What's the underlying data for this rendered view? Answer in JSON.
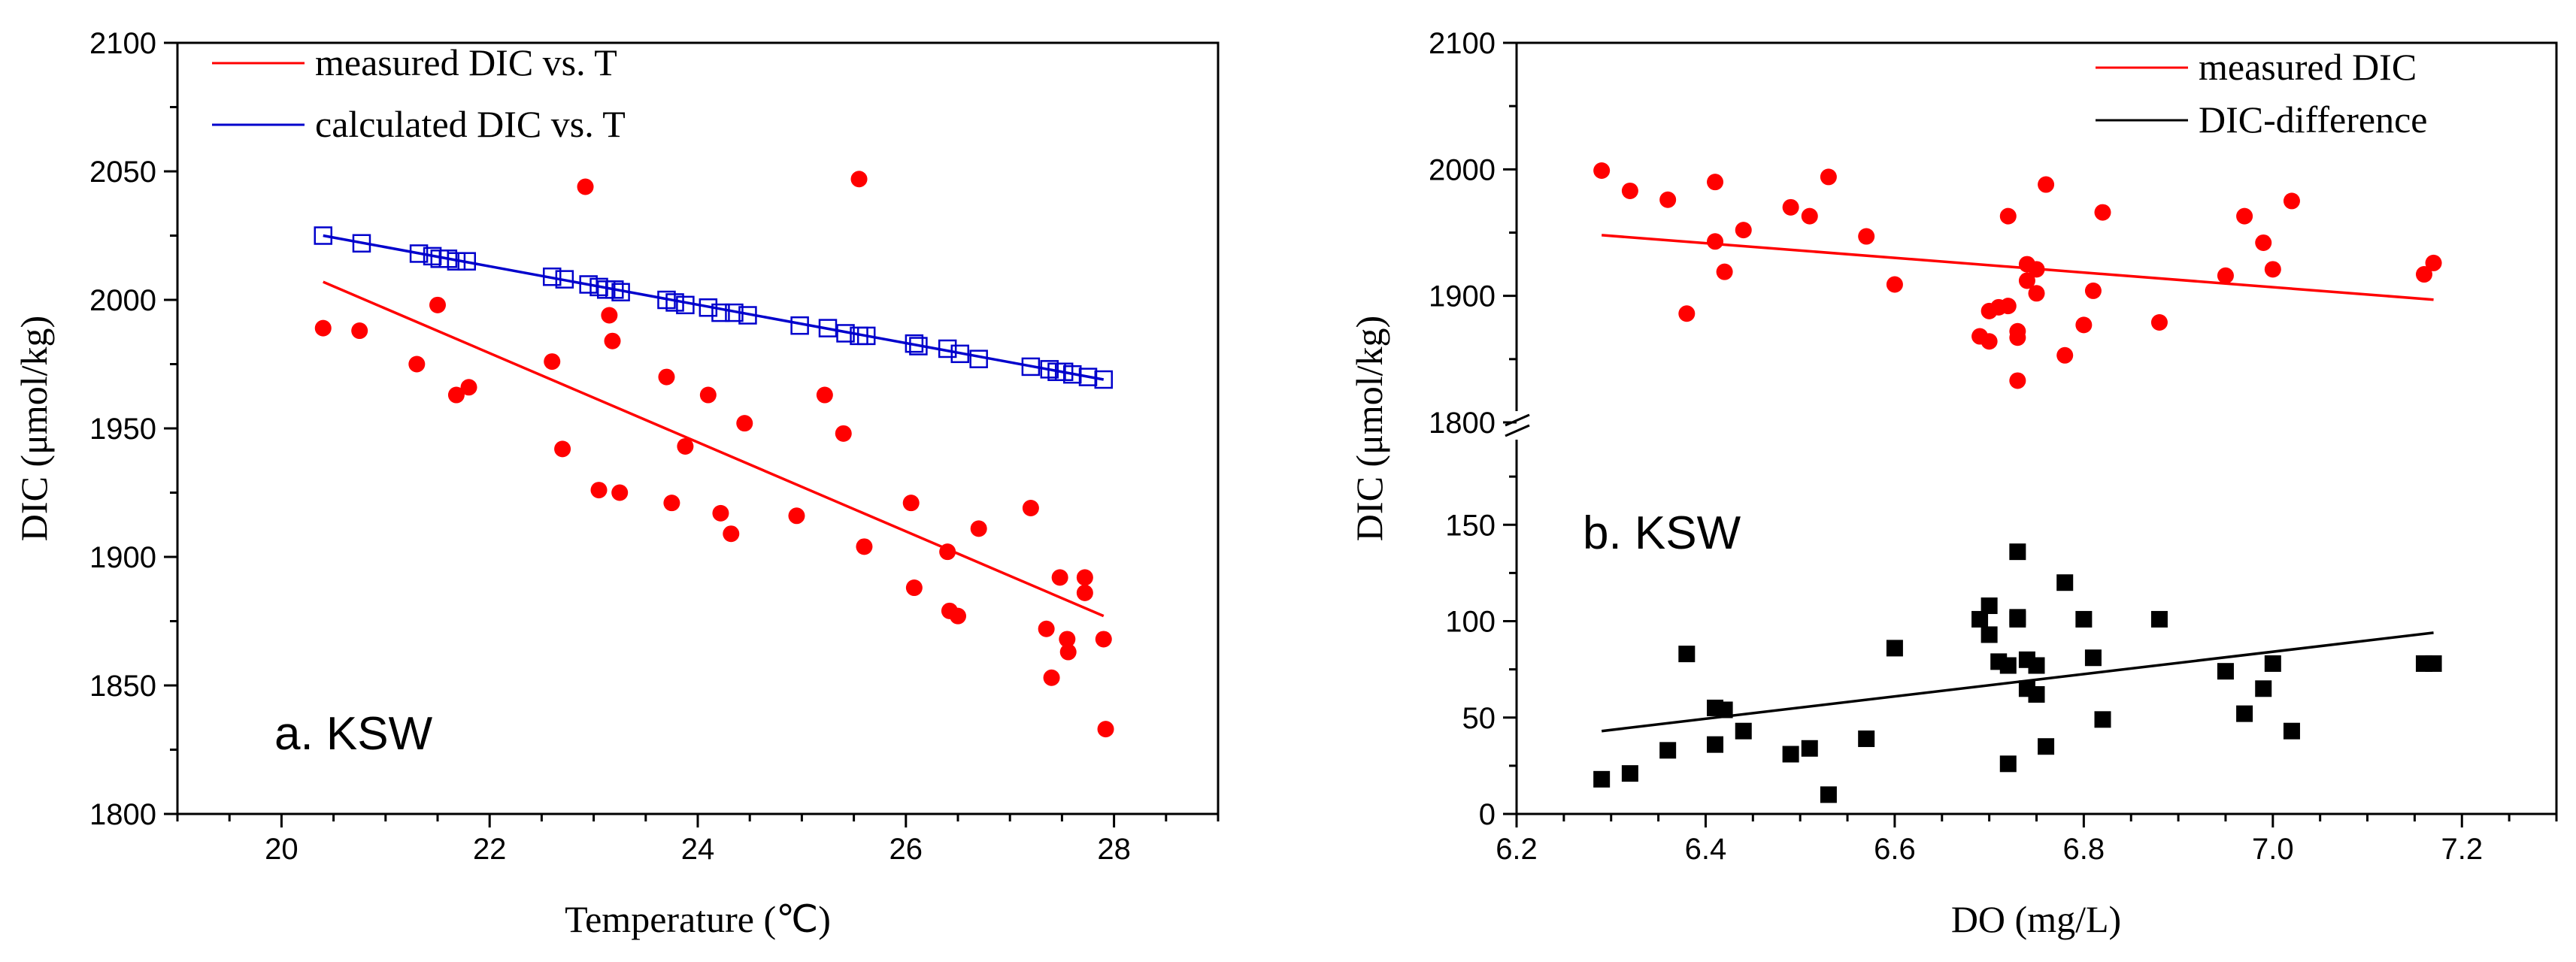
{
  "chart_data": [
    {
      "type": "scatter",
      "title": "",
      "annotation": "a. KSW",
      "xlabel": "Temperature (℃)",
      "ylabel": "DIC (μmol/kg)",
      "xlim": [
        19,
        29
      ],
      "ylim": [
        1800,
        2100
      ],
      "xticks": [
        20,
        22,
        24,
        26,
        28
      ],
      "yticks": [
        1800,
        1850,
        1900,
        1950,
        2000,
        2050,
        2100
      ],
      "legend_position": "top-left",
      "series": [
        {
          "name": "measured DIC vs. T",
          "color": "#ff0000",
          "marker": "circle",
          "x": [
            20.4,
            20.75,
            21.3,
            21.5,
            21.68,
            21.8,
            22.6,
            22.7,
            22.92,
            23.05,
            23.15,
            23.18,
            23.25,
            23.7,
            23.75,
            23.88,
            24.1,
            24.22,
            24.32,
            24.45,
            24.95,
            25.22,
            25.4,
            25.55,
            25.6,
            26.05,
            26.08,
            26.4,
            26.42,
            26.5,
            26.7,
            27.2,
            27.35,
            27.4,
            27.48,
            27.55,
            27.56,
            27.72,
            27.72,
            27.9,
            27.92
          ],
          "y": [
            1989,
            1988,
            1975,
            1998,
            1963,
            1966,
            1976,
            1942,
            2044,
            1926,
            1994,
            1984,
            1925,
            1970,
            1921,
            1943,
            1963,
            1917,
            1909,
            1952,
            1916,
            1963,
            1948,
            2047,
            1904,
            1921,
            1888,
            1902,
            1879,
            1877,
            1911,
            1919,
            1872,
            1853,
            1892,
            1868,
            1863,
            1892,
            1886,
            1868,
            1833
          ]
        },
        {
          "name": "calculated DIC vs. T",
          "color": "#0000cc",
          "marker": "open-square",
          "x": [
            20.4,
            20.77,
            21.32,
            21.45,
            21.52,
            21.6,
            21.68,
            21.78,
            22.6,
            22.72,
            22.95,
            23.05,
            23.12,
            23.2,
            23.26,
            23.7,
            23.78,
            23.88,
            24.1,
            24.22,
            24.35,
            24.48,
            24.98,
            25.25,
            25.42,
            25.55,
            25.62,
            26.08,
            26.12,
            26.4,
            26.52,
            26.7,
            27.2,
            27.38,
            27.45,
            27.52,
            27.6,
            27.75,
            27.9
          ],
          "y": [
            2025,
            2022,
            2018,
            2017,
            2016,
            2016,
            2015,
            2015,
            2009,
            2008,
            2006,
            2005,
            2004,
            2004,
            2003,
            2000,
            1999,
            1998,
            1997,
            1995,
            1995,
            1994,
            1990,
            1989,
            1987,
            1986,
            1986,
            1983,
            1982,
            1981,
            1979,
            1977,
            1974,
            1973,
            1972,
            1972,
            1971,
            1970,
            1969
          ]
        }
      ],
      "fit_lines": [
        {
          "series": "measured DIC vs. T",
          "color": "#ff0000",
          "x": [
            20.4,
            27.9
          ],
          "y": [
            2007,
            1877
          ]
        },
        {
          "series": "calculated DIC vs. T",
          "color": "#0000cc",
          "x": [
            20.4,
            27.9
          ],
          "y": [
            2025,
            1969
          ]
        }
      ]
    },
    {
      "type": "scatter",
      "title": "",
      "annotation": "b. KSW",
      "xlabel": "DO (mg/L)",
      "ylabel": "DIC (μmol/kg)",
      "xlim": [
        6.2,
        7.3
      ],
      "xticks": [
        6.2,
        6.4,
        6.6,
        6.8,
        7.0,
        7.2
      ],
      "x_tick_labels": [
        "6.2",
        "6.4",
        "6.6",
        "6.8",
        "7.0",
        "7.2"
      ],
      "axis_break": true,
      "upper_ylim": [
        1800,
        2100
      ],
      "upper_yticks": [
        1800,
        1900,
        2000,
        2100
      ],
      "lower_ylim": [
        0,
        200
      ],
      "lower_yticks": [
        0,
        50,
        100,
        150
      ],
      "legend_position": "top-right",
      "series": [
        {
          "name": "measured DIC",
          "color": "#ff0000",
          "marker": "circle",
          "panel": "upper",
          "x": [
            6.29,
            6.32,
            6.36,
            6.38,
            6.41,
            6.41,
            6.42,
            6.44,
            6.49,
            6.51,
            6.53,
            6.57,
            6.6,
            6.69,
            6.7,
            6.7,
            6.71,
            6.72,
            6.72,
            6.73,
            6.73,
            6.73,
            6.74,
            6.74,
            6.75,
            6.75,
            6.76,
            6.78,
            6.8,
            6.81,
            6.82,
            6.88,
            6.95,
            6.97,
            6.99,
            7.0,
            7.02,
            7.16,
            7.17
          ],
          "y": [
            1999,
            1983,
            1976,
            1886,
            1990,
            1943,
            1919,
            1952,
            1970,
            1963,
            1994,
            1947,
            1909,
            1868,
            1864,
            1888,
            1891,
            1892,
            1963,
            1872,
            1867,
            1833,
            1925,
            1912,
            1921,
            1902,
            1988,
            1853,
            1877,
            1904,
            1966,
            1879,
            1916,
            1963,
            1942,
            1921,
            1975,
            1917,
            1926
          ]
        },
        {
          "name": "DIC-difference",
          "color": "#000000",
          "marker": "square",
          "panel": "lower",
          "x": [
            6.29,
            6.32,
            6.36,
            6.38,
            6.41,
            6.41,
            6.42,
            6.44,
            6.49,
            6.51,
            6.53,
            6.57,
            6.6,
            6.69,
            6.7,
            6.7,
            6.71,
            6.72,
            6.72,
            6.73,
            6.73,
            6.73,
            6.74,
            6.74,
            6.75,
            6.75,
            6.76,
            6.78,
            6.8,
            6.81,
            6.82,
            6.88,
            6.95,
            6.97,
            6.99,
            7.0,
            7.02,
            7.16,
            7.17
          ],
          "y": [
            18,
            21,
            33,
            83,
            36,
            55,
            54,
            43,
            31,
            34,
            10,
            39,
            86,
            101,
            108,
            93,
            79,
            26,
            77,
            102,
            101,
            136,
            80,
            65,
            62,
            77,
            35,
            120,
            101,
            81,
            49,
            101,
            74,
            52,
            65,
            78,
            43,
            78,
            78
          ]
        }
      ],
      "fit_lines": [
        {
          "series": "measured DIC",
          "panel": "upper",
          "color": "#ff0000",
          "x": [
            6.29,
            7.17
          ],
          "y": [
            1948,
            1897
          ]
        },
        {
          "series": "DIC-difference",
          "panel": "lower",
          "color": "#000000",
          "x": [
            6.29,
            7.17
          ],
          "y": [
            43,
            94
          ]
        }
      ]
    }
  ]
}
